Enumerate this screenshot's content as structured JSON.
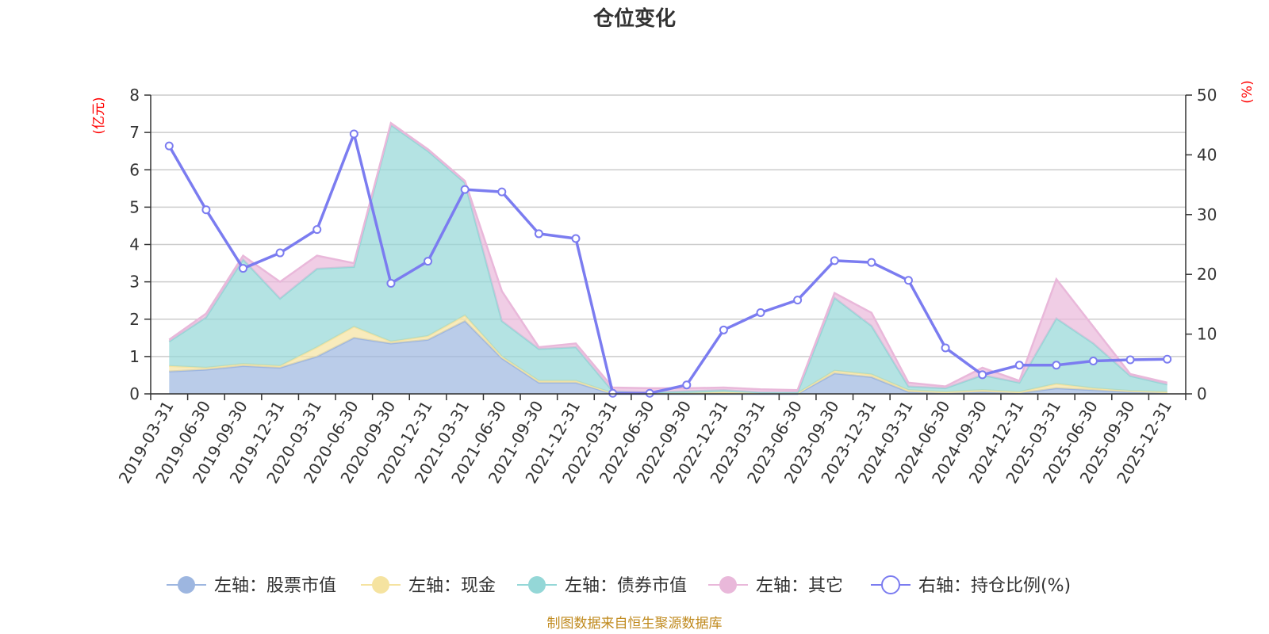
{
  "chart_data": {
    "type": "area",
    "title": "仓位变化",
    "source_note": "制图数据来自恒生聚源数据库",
    "left_axis": {
      "unit": "(亿元)",
      "ylim": [
        0,
        8
      ],
      "ticks": [
        "0",
        "1",
        "2",
        "3",
        "4",
        "5",
        "6",
        "7",
        "8"
      ]
    },
    "right_axis": {
      "unit": "(%)",
      "ylim": [
        0,
        50
      ],
      "ticks": [
        "0",
        "10",
        "20",
        "30",
        "40",
        "50"
      ]
    },
    "grid": true,
    "legend_position": "bottom",
    "categories": [
      "2019-03-31",
      "2019-06-30",
      "2019-09-30",
      "2019-12-31",
      "2020-03-31",
      "2020-06-30",
      "2020-09-30",
      "2020-12-31",
      "2021-03-31",
      "2021-06-30",
      "2021-09-30",
      "2021-12-31",
      "2022-03-31",
      "2022-06-30",
      "2022-09-30",
      "2022-12-31",
      "2023-03-31",
      "2023-06-30",
      "2023-09-30",
      "2023-12-31",
      "2024-03-31",
      "2024-06-30",
      "2024-09-30",
      "2024-12-31",
      "2025-03-31",
      "2025-06-30",
      "2025-09-30",
      "2025-12-31"
    ],
    "series": [
      {
        "name": "左轴：股票市值",
        "axis": "left",
        "color": "#9db6e0",
        "values": [
          0.6,
          0.65,
          0.75,
          0.7,
          1.0,
          1.5,
          1.35,
          1.45,
          1.95,
          0.95,
          0.3,
          0.3,
          0.0,
          0.0,
          0.0,
          0.0,
          0.0,
          0.0,
          0.55,
          0.45,
          0.05,
          0.02,
          0.05,
          0.02,
          0.15,
          0.1,
          0.05,
          0.02
        ]
      },
      {
        "name": "左轴：现金",
        "axis": "left",
        "color": "#f5e3a0",
        "values": [
          0.15,
          0.05,
          0.05,
          0.05,
          0.25,
          0.3,
          0.05,
          0.1,
          0.15,
          0.05,
          0.05,
          0.05,
          0.02,
          0.02,
          0.02,
          0.05,
          0.02,
          0.02,
          0.07,
          0.07,
          0.05,
          0.03,
          0.05,
          0.03,
          0.12,
          0.05,
          0.03,
          0.03
        ]
      },
      {
        "name": "左轴：债券市值",
        "axis": "left",
        "color": "#94d7d7",
        "values": [
          0.65,
          1.35,
          2.8,
          1.8,
          2.1,
          1.6,
          5.8,
          4.95,
          3.55,
          0.95,
          0.85,
          0.9,
          0.05,
          0.02,
          0.05,
          0.05,
          0.02,
          0.02,
          1.95,
          1.3,
          0.1,
          0.1,
          0.4,
          0.25,
          1.75,
          1.2,
          0.4,
          0.2
        ]
      },
      {
        "name": "左轴：其它",
        "axis": "left",
        "color": "#e9b8da",
        "values": [
          0.05,
          0.1,
          0.1,
          0.45,
          0.35,
          0.1,
          0.05,
          0.05,
          0.05,
          0.8,
          0.05,
          0.1,
          0.1,
          0.11,
          0.08,
          0.07,
          0.08,
          0.06,
          0.13,
          0.35,
          0.1,
          0.05,
          0.2,
          0.05,
          1.05,
          0.45,
          0.05,
          0.05
        ]
      },
      {
        "name": "右轴：持仓比例(%)",
        "axis": "right",
        "color": "#7b7cf0",
        "values": [
          41.5,
          30.8,
          21.0,
          23.6,
          27.5,
          43.5,
          18.5,
          22.2,
          34.2,
          33.8,
          26.8,
          26.0,
          0.1,
          0.1,
          1.5,
          10.7,
          13.6,
          15.7,
          22.3,
          22.0,
          19.0,
          7.7,
          3.2,
          4.8,
          4.8,
          5.5,
          5.7,
          5.8
        ]
      }
    ]
  }
}
